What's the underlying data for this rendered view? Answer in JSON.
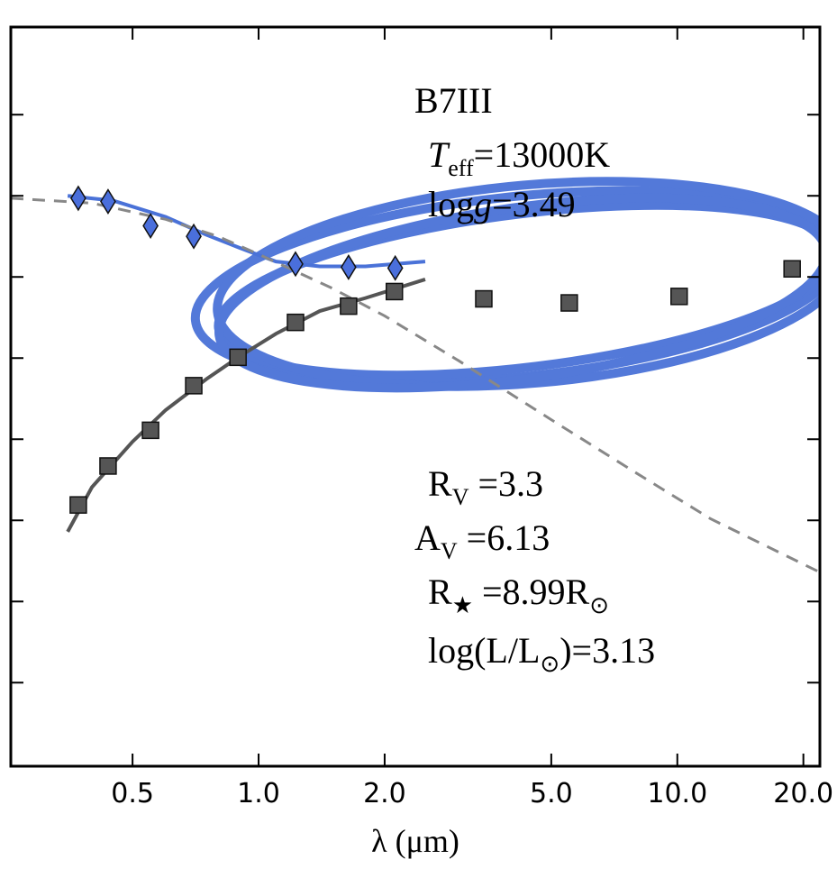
{
  "chart_data": {
    "type": "line",
    "xscale": "log",
    "xlim": [
      0.256,
      21.9
    ],
    "xticks": [
      0.5,
      {
        "value": 1,
        "label": "1.0"
      },
      {
        "value": 2,
        "label": "2.0"
      },
      {
        "value": 5,
        "label": "5.0"
      },
      {
        "value": 10,
        "label": "10.0"
      },
      {
        "value": 20,
        "label": "20.0"
      }
    ],
    "ylim": [
      -0.03,
      9.08
    ],
    "yticks": [
      1,
      2,
      3,
      4,
      5,
      6,
      7,
      8
    ],
    "xlabel": "λ (μm)",
    "series": [
      {
        "kind": "line",
        "color": "#555555",
        "x": [
          0.35,
          0.4,
          0.5,
          0.6,
          0.75,
          0.9,
          1.1,
          1.4,
          1.8,
          2.5
        ],
        "values": [
          2.86,
          3.41,
          3.97,
          4.36,
          4.74,
          5.02,
          5.3,
          5.58,
          5.74,
          5.97
        ]
      },
      {
        "kind": "line",
        "color": "#4a72d8",
        "x": [
          0.35,
          0.45,
          0.6,
          0.75,
          0.9,
          1.1,
          1.4,
          1.8,
          2.5
        ],
        "values": [
          7.0,
          6.94,
          6.74,
          6.52,
          6.36,
          6.19,
          6.13,
          6.13,
          6.19
        ]
      },
      {
        "kind": "line",
        "dash": true,
        "color": "#888888",
        "x": [
          0.256,
          0.4,
          0.6,
          0.8,
          1.0,
          1.5,
          2.0,
          3.0,
          5.0,
          8.0,
          12,
          21.9
        ],
        "values": [
          6.97,
          6.91,
          6.71,
          6.5,
          6.28,
          5.86,
          5.52,
          4.97,
          4.24,
          3.58,
          3.02,
          2.36
        ]
      },
      {
        "kind": "scatter",
        "marker": "square",
        "color": "#555555",
        "x": [
          0.371,
          0.437,
          0.552,
          0.7,
          0.893,
          1.225,
          1.64,
          2.11,
          3.45,
          5.52,
          10.1,
          18.8
        ],
        "values": [
          3.19,
          3.67,
          4.11,
          4.66,
          5.01,
          5.44,
          5.64,
          5.82,
          5.73,
          5.68,
          5.76,
          6.1
        ]
      },
      {
        "kind": "scatter",
        "marker": "diamond",
        "color": "#4a6fdc",
        "x": [
          0.371,
          0.437,
          0.552,
          0.7,
          1.225,
          1.64,
          2.12
        ],
        "values": [
          6.97,
          6.93,
          6.63,
          6.5,
          6.16,
          6.12,
          6.11
        ]
      }
    ],
    "annotations": [
      [
        {
          "text": "B7III"
        }
      ],
      [
        {
          "text": "T",
          "italic": true
        },
        {
          "text": "eff",
          "sub": true
        },
        {
          "text": "=13000K"
        }
      ],
      [
        {
          "text": "log"
        },
        {
          "text": "g",
          "italic": true
        },
        {
          "text": "=3.49"
        }
      ],
      [
        {
          "text": "R"
        },
        {
          "text": "V",
          "sub": true
        },
        {
          "text": " =3.3"
        }
      ],
      [
        {
          "text": "A"
        },
        {
          "text": "V",
          "sub": true
        },
        {
          "text": " =6.13"
        }
      ],
      [
        {
          "text": "R"
        },
        {
          "text": "★",
          "sub": true
        },
        {
          "text": " =8.99R"
        },
        {
          "text": "⊙",
          "sub": true
        }
      ],
      [
        {
          "text": "log(L/L"
        },
        {
          "text": "⊙",
          "sub": true
        },
        {
          "text": ")=3.13"
        }
      ]
    ]
  }
}
